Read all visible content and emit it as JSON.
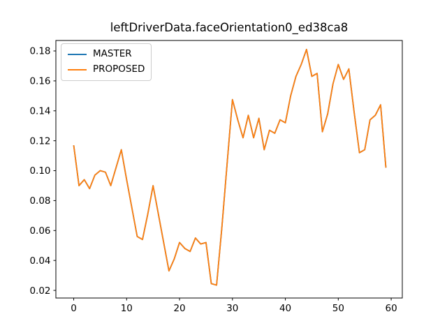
{
  "figure": {
    "background": "#ffffff",
    "text_color": "#000000",
    "spine_color": "#000000"
  },
  "chart_data": {
    "type": "line",
    "title": "leftDriverData.faceOrientation0_ed38ca8",
    "xlabel": "",
    "ylabel": "",
    "grid": false,
    "legend_position": "upper left",
    "legend_border_color": "#cccccc",
    "xlim": [
      -3.37,
      62.1
    ],
    "ylim": [
      0.0149,
      0.187
    ],
    "x_tick_labels": [
      "0",
      "10",
      "20",
      "30",
      "40",
      "50",
      "60"
    ],
    "y_tick_labels": [
      "0.02",
      "0.04",
      "0.06",
      "0.08",
      "0.10",
      "0.12",
      "0.14",
      "0.16",
      "0.18"
    ],
    "x": [
      0,
      1,
      2,
      3,
      4,
      5,
      6,
      7,
      8,
      9,
      10,
      11,
      12,
      13,
      14,
      15,
      16,
      17,
      18,
      19,
      20,
      21,
      22,
      23,
      24,
      25,
      26,
      27,
      28,
      29,
      30,
      31,
      32,
      33,
      34,
      35,
      36,
      37,
      38,
      39,
      40,
      41,
      42,
      43,
      44,
      45,
      46,
      47,
      48,
      49,
      50,
      51,
      52,
      53,
      54,
      55,
      56,
      57,
      58,
      59
    ],
    "series": [
      {
        "name": "MASTER",
        "color": "#1f77b4",
        "values": [
          0.117,
          0.09,
          0.094,
          0.088,
          0.097,
          0.1,
          0.099,
          0.09,
          0.102,
          0.114,
          0.094,
          0.075,
          0.056,
          0.054,
          0.071,
          0.09,
          0.071,
          0.052,
          0.033,
          0.041,
          0.052,
          0.048,
          0.046,
          0.055,
          0.051,
          0.052,
          0.0245,
          0.0235,
          0.062,
          0.105,
          0.1475,
          0.134,
          0.122,
          0.137,
          0.122,
          0.135,
          0.114,
          0.127,
          0.125,
          0.134,
          0.132,
          0.15,
          0.163,
          0.171,
          0.181,
          0.163,
          0.165,
          0.126,
          0.138,
          0.158,
          0.171,
          0.161,
          0.168,
          0.139,
          0.112,
          0.114,
          0.134,
          0.137,
          0.144,
          0.102
        ]
      },
      {
        "name": "PROPOSED",
        "color": "#ff7f0e",
        "values": [
          0.117,
          0.09,
          0.094,
          0.088,
          0.097,
          0.1,
          0.099,
          0.09,
          0.102,
          0.114,
          0.094,
          0.075,
          0.056,
          0.054,
          0.071,
          0.09,
          0.071,
          0.052,
          0.033,
          0.041,
          0.052,
          0.048,
          0.046,
          0.055,
          0.051,
          0.052,
          0.0245,
          0.0235,
          0.062,
          0.105,
          0.1475,
          0.134,
          0.122,
          0.137,
          0.122,
          0.135,
          0.114,
          0.127,
          0.125,
          0.134,
          0.132,
          0.15,
          0.163,
          0.171,
          0.181,
          0.163,
          0.165,
          0.126,
          0.138,
          0.158,
          0.171,
          0.161,
          0.168,
          0.139,
          0.112,
          0.114,
          0.134,
          0.137,
          0.144,
          0.102
        ]
      }
    ]
  }
}
